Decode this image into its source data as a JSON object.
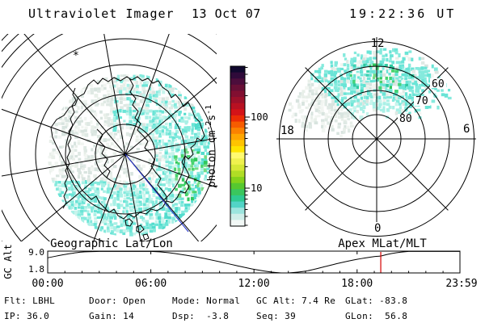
{
  "title": {
    "instrument": "Ultraviolet Imager",
    "date": "13 Oct 07",
    "time": "19:22:36 UT"
  },
  "left_panel": {
    "caption": "Geographic Lat/Lon",
    "marker": "*"
  },
  "right_panel": {
    "caption": "Apex MLat/MLT",
    "mlt_top": "12",
    "mlt_left": "18",
    "mlt_right": "6",
    "mlt_bottom": "0",
    "lat_labels": [
      "60",
      "70",
      "80"
    ]
  },
  "colorbar": {
    "unit_pre": "photon cm",
    "unit_sup1": "-2",
    "unit_mid": "s",
    "unit_sup2": "-1",
    "ticks": [
      "100",
      "10"
    ],
    "scale": "log",
    "colors": [
      "#10082e",
      "#2f0a3a",
      "#4c0d3c",
      "#680f36",
      "#820f31",
      "#9c102a",
      "#b81122",
      "#d41318",
      "#ec2d05",
      "#f65c00",
      "#fb8200",
      "#ffa600",
      "#ffc400",
      "#ffe400",
      "#fffa70",
      "#f0f14e",
      "#d6e836",
      "#b0dd25",
      "#84d21b",
      "#56c82f",
      "#3ac65e",
      "#2fca92",
      "#52d4c6",
      "#9ce5de",
      "#cfeee9",
      "#f2f8f6"
    ]
  },
  "strip_chart": {
    "ylabel": "GC Alt",
    "ymax_label": "9.0",
    "ymin_label": "1.8",
    "x_ticks": [
      "00:00",
      "06:00",
      "12:00",
      "18:00",
      "23:59"
    ]
  },
  "status": {
    "row1": [
      "Flt: LBHL",
      "Door: Open",
      "Mode: Normal",
      "GC Alt: 7.4 Re",
      "GLat: -83.8"
    ],
    "row2": [
      "IP: 36.0",
      "Gain: 14",
      "Dsp:  -3.8",
      "Seq: 39",
      "GLon:  56.8"
    ]
  },
  "colors": {
    "background": "#ffffff",
    "line": "#000000",
    "orbit_track": "#2233cc",
    "time_marker": "#d40000"
  },
  "aurora": {
    "pale": [
      "#e8efe9",
      "#dfe9e4",
      "#f1f5f1",
      "#d8e4df"
    ],
    "cyan_light": [
      "#c6f4ec",
      "#a9f0e6"
    ],
    "cyan_mid": [
      "#85eadd",
      "#6ae4d6"
    ],
    "cyan_deep": [
      "#52dccd"
    ],
    "green": [
      "#48d36e",
      "#2fc75c",
      "#73dd86"
    ],
    "teal": [
      "#3ed2b2",
      "#2fcaa0",
      "#43d479",
      "#5fe3d2"
    ]
  },
  "chart_data": [
    {
      "type": "heatmap",
      "name": "geographic-image",
      "title": "Geographic Lat/Lon",
      "projection": "satellite view of southern polar cap with lat/lon grid and coastlines",
      "value_units": "photon cm-2s-1",
      "value_scale": "log",
      "value_ticks": [
        10,
        100
      ],
      "content": "faint diffuse auroral UV emission (~2-20 photon cm-2s-1), pale gray on anti-sunward side, cyan with green patches toward right limb"
    },
    {
      "type": "heatmap",
      "name": "apex-image",
      "title": "Apex MLat/MLT",
      "rings_mlat": [
        80,
        70,
        60,
        50
      ],
      "mlt_spokes": [
        0,
        3,
        6,
        9,
        12,
        15,
        18,
        21
      ],
      "content": "auroral emission band between 60 and 85 MLat spanning roughly 09-18 MLT, brightest cyan/green near 12 MLT at 65-75 MLat"
    },
    {
      "type": "line",
      "name": "gc-alt-orbit",
      "title": "GC Alt",
      "ylabel": "GC Alt (Re)",
      "ylim": [
        1.8,
        9.0
      ],
      "xlim_hours": [
        0,
        23.983
      ],
      "x_ticks": [
        "00:00",
        "06:00",
        "12:00",
        "18:00",
        "23:59"
      ],
      "x_hours": [
        0,
        1,
        2,
        3,
        4,
        5,
        6,
        7,
        8,
        9,
        10,
        11,
        12,
        13,
        13.5,
        14,
        15,
        16,
        17,
        18,
        19,
        19.38,
        20,
        21,
        22,
        23,
        23.98
      ],
      "y_re": [
        6.8,
        7.9,
        8.7,
        9.0,
        9.1,
        9.1,
        9.0,
        8.5,
        7.7,
        6.7,
        5.5,
        4.2,
        3.0,
        2.1,
        1.85,
        1.8,
        2.4,
        3.7,
        5.1,
        6.3,
        7.2,
        7.4,
        8.2,
        8.9,
        9.05,
        9.1,
        9.1
      ],
      "marker_hour": 19.377,
      "marker_label": "19:22:36 UT"
    }
  ]
}
